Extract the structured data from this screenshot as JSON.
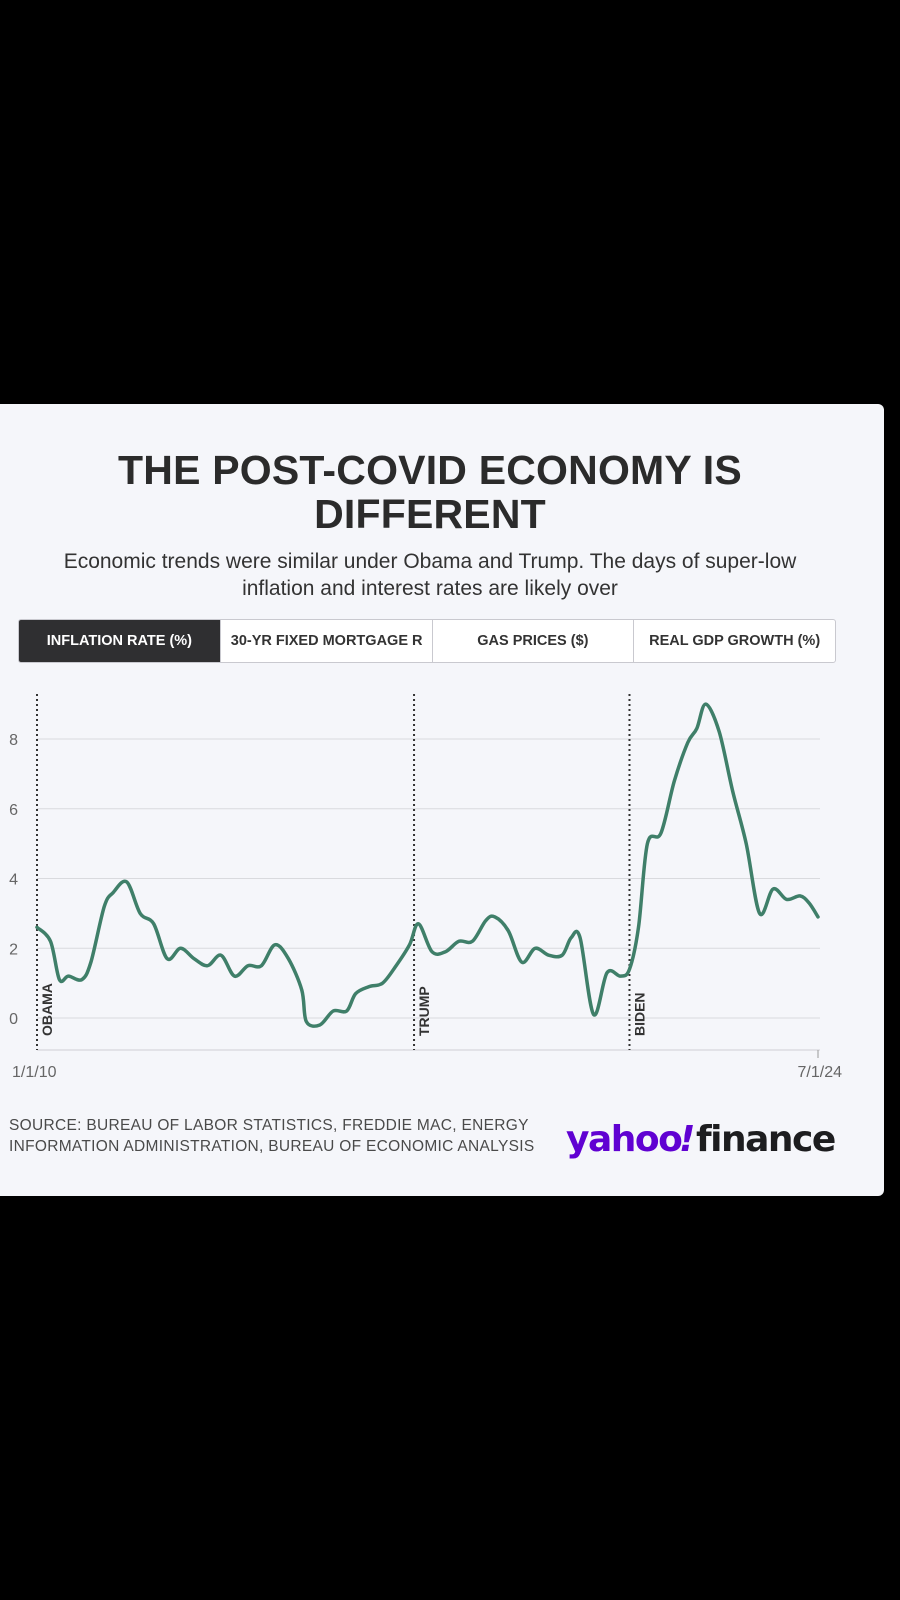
{
  "header": {
    "title_line1": "THE POST-COVID ECONOMY IS",
    "title_line2": "DIFFERENT",
    "subtitle_line1": "Economic trends were similar under Obama and Trump. The days of super-low",
    "subtitle_line2": "inflation and interest rates are likely over"
  },
  "tabs": [
    {
      "label": "INFLATION RATE (%)",
      "active": true
    },
    {
      "label": "30-YR FIXED MORTGAGE R",
      "active": false
    },
    {
      "label": "GAS PRICES ($)",
      "active": false
    },
    {
      "label": "REAL GDP GROWTH (%)",
      "active": false
    }
  ],
  "footer": {
    "source": "SOURCE: BUREAU OF LABOR STATISTICS, FREDDIE MAC, ENERGY INFORMATION ADMINISTRATION, BUREAU OF ECONOMIC ANALYSIS",
    "logo_text": "yahoo!finance"
  },
  "colors": {
    "line": "#3f7f69",
    "brand_purple": "#6001d2",
    "active_tab": "#2f2f31"
  },
  "chart_data": {
    "type": "line",
    "series": [
      {
        "x": [
          "2010-01",
          "2010-04",
          "2010-06",
          "2010-08",
          "2010-11",
          "2011-01",
          "2011-04",
          "2011-06",
          "2011-09",
          "2011-12",
          "2012-03",
          "2012-06",
          "2012-09",
          "2012-12",
          "2013-03",
          "2013-06",
          "2013-09",
          "2013-12",
          "2014-03",
          "2014-06",
          "2014-09",
          "2014-12",
          "2015-01",
          "2015-04",
          "2015-07",
          "2015-10",
          "2015-12",
          "2016-03",
          "2016-06",
          "2016-09",
          "2016-12",
          "2017-02",
          "2017-05",
          "2017-08",
          "2017-11",
          "2018-02",
          "2018-05",
          "2018-07",
          "2018-10",
          "2019-01",
          "2019-04",
          "2019-07",
          "2019-10",
          "2019-12",
          "2020-02",
          "2020-05",
          "2020-08",
          "2020-11",
          "2021-01",
          "2021-03",
          "2021-05",
          "2021-08",
          "2021-11",
          "2022-02",
          "2022-04",
          "2022-06",
          "2022-09",
          "2022-12",
          "2023-03",
          "2023-06",
          "2023-09",
          "2023-12",
          "2024-03",
          "2024-05",
          "2024-07"
        ],
        "y": [
          2.6,
          2.2,
          1.1,
          1.2,
          1.1,
          1.6,
          3.2,
          3.6,
          3.9,
          3.0,
          2.7,
          1.7,
          2.0,
          1.7,
          1.5,
          1.8,
          1.2,
          1.5,
          1.5,
          2.1,
          1.7,
          0.8,
          -0.1,
          -0.2,
          0.2,
          0.2,
          0.7,
          0.9,
          1.0,
          1.5,
          2.1,
          2.7,
          1.9,
          1.9,
          2.2,
          2.2,
          2.8,
          2.9,
          2.5,
          1.6,
          2.0,
          1.8,
          1.8,
          2.3,
          2.3,
          0.1,
          1.3,
          1.2,
          1.4,
          2.6,
          5.0,
          5.3,
          6.8,
          7.9,
          8.3,
          9.0,
          8.2,
          6.5,
          5.0,
          3.0,
          3.7,
          3.4,
          3.5,
          3.3,
          2.9
        ]
      }
    ],
    "ytick_labels": [
      "0",
      "2",
      "4",
      "6",
      "8"
    ],
    "ylim": [
      -1,
      9.5
    ],
    "x_axis_labels": [
      "1/1/10",
      "7/1/24"
    ],
    "annotations": [
      {
        "label": "OBAMA",
        "x": "2010-01"
      },
      {
        "label": "TRUMP",
        "x": "2017-01"
      },
      {
        "label": "BIDEN",
        "x": "2021-01"
      }
    ],
    "grid": true
  }
}
